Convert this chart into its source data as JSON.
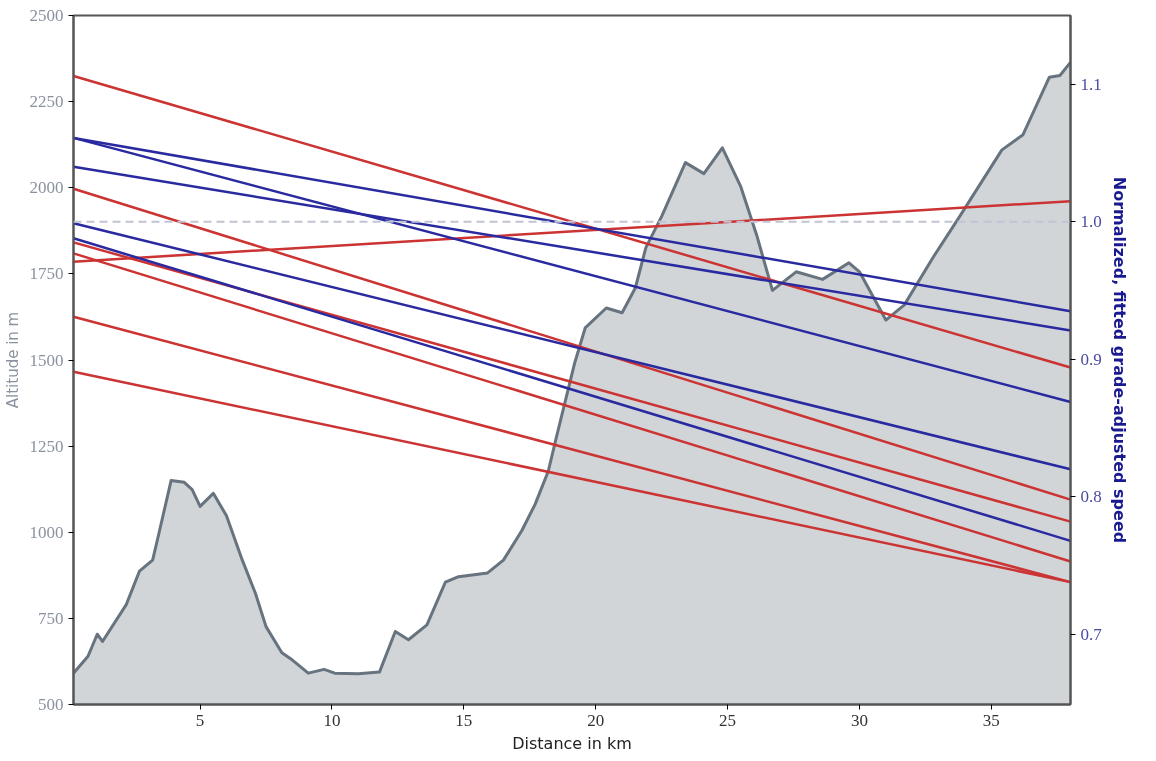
{
  "chart_data": {
    "type": "line",
    "xlabel": "Distance in km",
    "ylabel": "Altitude in m",
    "y2label": "Normalized, fitted grade-adjusted speed",
    "xlim": [
      0.2,
      38
    ],
    "xticks": [
      5,
      10,
      15,
      20,
      25,
      30,
      35
    ],
    "ylim": [
      500,
      2500
    ],
    "yticks": [
      500,
      750,
      1000,
      1250,
      1500,
      1750,
      2000,
      2250,
      2500
    ],
    "y2lim": [
      0.649,
      1.15
    ],
    "y2ticks": [
      {
        "value": 0.7,
        "label": "0.7"
      },
      {
        "value": 0.8,
        "label": "0.8"
      },
      {
        "value": 0.9,
        "label": "0.9"
      },
      {
        "value": 1.0,
        "label": "1.0"
      },
      {
        "value": 1.1,
        "label": "1.1"
      }
    ],
    "ref_lines": [
      {
        "axis": "y2",
        "value": 1.0,
        "color": "#c0c4d4",
        "line_style": "dashed"
      }
    ],
    "series": [
      {
        "type": "area",
        "color": "#67737e",
        "x": [
          0.2,
          0.75,
          1.1,
          1.3,
          2.2,
          2.7,
          3.2,
          3.4,
          3.9,
          4.4,
          4.7,
          5.0,
          5.5,
          6.0,
          6.6,
          7.1,
          7.5,
          8.1,
          8.5,
          9.1,
          9.7,
          10.1,
          11.0,
          11.8,
          12.4,
          12.9,
          13.6,
          14.3,
          14.8,
          15.9,
          16.5,
          17.2,
          17.7,
          18.2,
          18.5,
          19.2,
          19.6,
          20.4,
          21.0,
          21.5,
          21.9,
          22.5,
          23.4,
          24.1,
          24.8,
          25.5,
          26.1,
          26.7,
          27.6,
          28.6,
          29.6,
          30.0,
          31.0,
          31.7,
          32.8,
          33.8,
          35.4,
          36.2,
          37.2,
          37.6,
          38.0
        ],
        "values": [
          591,
          640,
          704,
          683,
          790,
          887,
          919,
          984,
          1150,
          1145,
          1124,
          1075,
          1113,
          1048,
          919,
          822,
          726,
          650,
          629,
          591,
          602,
          591,
          589,
          594,
          712,
          688,
          731,
          855,
          871,
          882,
          919,
          1005,
          1081,
          1177,
          1273,
          1491,
          1593,
          1651,
          1637,
          1709,
          1826,
          1917,
          2073,
          2041,
          2116,
          2003,
          1863,
          1702,
          1756,
          1734,
          1782,
          1756,
          1616,
          1660,
          1799,
          1917,
          2110,
          2154,
          2321,
          2326,
          2364
        ]
      },
      {
        "axis": "y2",
        "color": "#cc3333",
        "x": [
          0.2,
          38
        ],
        "values": [
          1.106,
          0.894
        ]
      },
      {
        "axis": "y2",
        "color": "#cc3333",
        "x": [
          0.2,
          38
        ],
        "values": [
          1.024,
          0.798
        ]
      },
      {
        "axis": "y2",
        "color": "#cc3333",
        "x": [
          0.2,
          38
        ],
        "values": [
          0.985,
          0.782
        ]
      },
      {
        "axis": "y2",
        "color": "#cc3333",
        "x": [
          0.2,
          38
        ],
        "values": [
          0.977,
          0.753
        ]
      },
      {
        "axis": "y2",
        "color": "#cc3333",
        "x": [
          0.2,
          38
        ],
        "values": [
          0.971,
          1.015
        ]
      },
      {
        "axis": "y2",
        "color": "#cc3333",
        "x": [
          0.2,
          38
        ],
        "values": [
          0.931,
          0.738
        ]
      },
      {
        "axis": "y2",
        "color": "#cc3333",
        "x": [
          0.2,
          38
        ],
        "values": [
          0.891,
          0.738
        ]
      },
      {
        "axis": "y2",
        "color": "#2a2aa0",
        "x": [
          0.2,
          38
        ],
        "values": [
          1.061,
          0.935
        ]
      },
      {
        "axis": "y2",
        "color": "#2a2aa0",
        "x": [
          0.2,
          38
        ],
        "values": [
          1.061,
          0.869
        ]
      },
      {
        "axis": "y2",
        "color": "#2a2aa0",
        "x": [
          0.2,
          38
        ],
        "values": [
          1.04,
          0.921
        ]
      },
      {
        "axis": "y2",
        "color": "#2a2aa0",
        "x": [
          0.2,
          38
        ],
        "values": [
          0.999,
          0.82
        ]
      },
      {
        "axis": "y2",
        "color": "#2a2aa0",
        "x": [
          0.2,
          38
        ],
        "values": [
          0.988,
          0.768
        ]
      }
    ]
  }
}
